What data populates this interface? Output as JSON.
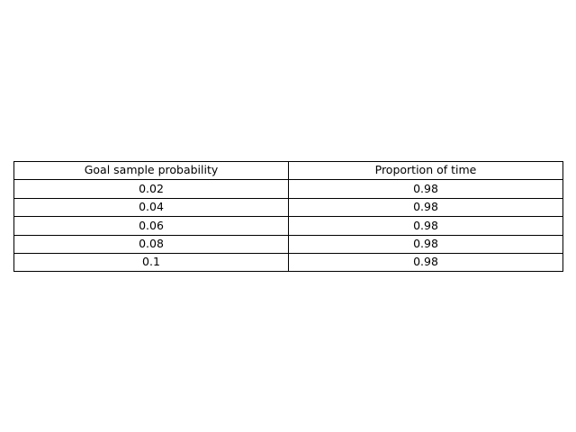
{
  "chart_data": {
    "type": "table",
    "columns": [
      "Goal sample probability",
      "Proportion of time"
    ],
    "rows": [
      [
        "0.02",
        "0.98"
      ],
      [
        "0.04",
        "0.98"
      ],
      [
        "0.06",
        "0.98"
      ],
      [
        "0.08",
        "0.98"
      ],
      [
        "0.1",
        "0.98"
      ]
    ],
    "title": ""
  },
  "colors": {
    "border": "#000000",
    "background": "#ffffff",
    "text": "#000000"
  }
}
